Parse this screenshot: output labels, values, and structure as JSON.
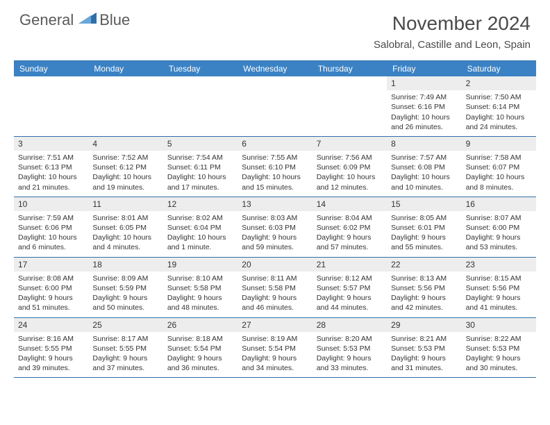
{
  "logo": {
    "word1": "General",
    "word2": "Blue"
  },
  "title": "November 2024",
  "location": "Salobral, Castille and Leon, Spain",
  "day_names": [
    "Sunday",
    "Monday",
    "Tuesday",
    "Wednesday",
    "Thursday",
    "Friday",
    "Saturday"
  ],
  "colors": {
    "header_bg": "#3b82c4",
    "border": "#2f6fa8",
    "daynum_bg": "#ededed",
    "logo_blue": "#3b7fc4",
    "text": "#333333"
  },
  "weeks": [
    [
      {
        "n": "",
        "sr": "",
        "ss": "",
        "dl": ""
      },
      {
        "n": "",
        "sr": "",
        "ss": "",
        "dl": ""
      },
      {
        "n": "",
        "sr": "",
        "ss": "",
        "dl": ""
      },
      {
        "n": "",
        "sr": "",
        "ss": "",
        "dl": ""
      },
      {
        "n": "",
        "sr": "",
        "ss": "",
        "dl": ""
      },
      {
        "n": "1",
        "sr": "Sunrise: 7:49 AM",
        "ss": "Sunset: 6:16 PM",
        "dl": "Daylight: 10 hours and 26 minutes."
      },
      {
        "n": "2",
        "sr": "Sunrise: 7:50 AM",
        "ss": "Sunset: 6:14 PM",
        "dl": "Daylight: 10 hours and 24 minutes."
      }
    ],
    [
      {
        "n": "3",
        "sr": "Sunrise: 7:51 AM",
        "ss": "Sunset: 6:13 PM",
        "dl": "Daylight: 10 hours and 21 minutes."
      },
      {
        "n": "4",
        "sr": "Sunrise: 7:52 AM",
        "ss": "Sunset: 6:12 PM",
        "dl": "Daylight: 10 hours and 19 minutes."
      },
      {
        "n": "5",
        "sr": "Sunrise: 7:54 AM",
        "ss": "Sunset: 6:11 PM",
        "dl": "Daylight: 10 hours and 17 minutes."
      },
      {
        "n": "6",
        "sr": "Sunrise: 7:55 AM",
        "ss": "Sunset: 6:10 PM",
        "dl": "Daylight: 10 hours and 15 minutes."
      },
      {
        "n": "7",
        "sr": "Sunrise: 7:56 AM",
        "ss": "Sunset: 6:09 PM",
        "dl": "Daylight: 10 hours and 12 minutes."
      },
      {
        "n": "8",
        "sr": "Sunrise: 7:57 AM",
        "ss": "Sunset: 6:08 PM",
        "dl": "Daylight: 10 hours and 10 minutes."
      },
      {
        "n": "9",
        "sr": "Sunrise: 7:58 AM",
        "ss": "Sunset: 6:07 PM",
        "dl": "Daylight: 10 hours and 8 minutes."
      }
    ],
    [
      {
        "n": "10",
        "sr": "Sunrise: 7:59 AM",
        "ss": "Sunset: 6:06 PM",
        "dl": "Daylight: 10 hours and 6 minutes."
      },
      {
        "n": "11",
        "sr": "Sunrise: 8:01 AM",
        "ss": "Sunset: 6:05 PM",
        "dl": "Daylight: 10 hours and 4 minutes."
      },
      {
        "n": "12",
        "sr": "Sunrise: 8:02 AM",
        "ss": "Sunset: 6:04 PM",
        "dl": "Daylight: 10 hours and 1 minute."
      },
      {
        "n": "13",
        "sr": "Sunrise: 8:03 AM",
        "ss": "Sunset: 6:03 PM",
        "dl": "Daylight: 9 hours and 59 minutes."
      },
      {
        "n": "14",
        "sr": "Sunrise: 8:04 AM",
        "ss": "Sunset: 6:02 PM",
        "dl": "Daylight: 9 hours and 57 minutes."
      },
      {
        "n": "15",
        "sr": "Sunrise: 8:05 AM",
        "ss": "Sunset: 6:01 PM",
        "dl": "Daylight: 9 hours and 55 minutes."
      },
      {
        "n": "16",
        "sr": "Sunrise: 8:07 AM",
        "ss": "Sunset: 6:00 PM",
        "dl": "Daylight: 9 hours and 53 minutes."
      }
    ],
    [
      {
        "n": "17",
        "sr": "Sunrise: 8:08 AM",
        "ss": "Sunset: 6:00 PM",
        "dl": "Daylight: 9 hours and 51 minutes."
      },
      {
        "n": "18",
        "sr": "Sunrise: 8:09 AM",
        "ss": "Sunset: 5:59 PM",
        "dl": "Daylight: 9 hours and 50 minutes."
      },
      {
        "n": "19",
        "sr": "Sunrise: 8:10 AM",
        "ss": "Sunset: 5:58 PM",
        "dl": "Daylight: 9 hours and 48 minutes."
      },
      {
        "n": "20",
        "sr": "Sunrise: 8:11 AM",
        "ss": "Sunset: 5:58 PM",
        "dl": "Daylight: 9 hours and 46 minutes."
      },
      {
        "n": "21",
        "sr": "Sunrise: 8:12 AM",
        "ss": "Sunset: 5:57 PM",
        "dl": "Daylight: 9 hours and 44 minutes."
      },
      {
        "n": "22",
        "sr": "Sunrise: 8:13 AM",
        "ss": "Sunset: 5:56 PM",
        "dl": "Daylight: 9 hours and 42 minutes."
      },
      {
        "n": "23",
        "sr": "Sunrise: 8:15 AM",
        "ss": "Sunset: 5:56 PM",
        "dl": "Daylight: 9 hours and 41 minutes."
      }
    ],
    [
      {
        "n": "24",
        "sr": "Sunrise: 8:16 AM",
        "ss": "Sunset: 5:55 PM",
        "dl": "Daylight: 9 hours and 39 minutes."
      },
      {
        "n": "25",
        "sr": "Sunrise: 8:17 AM",
        "ss": "Sunset: 5:55 PM",
        "dl": "Daylight: 9 hours and 37 minutes."
      },
      {
        "n": "26",
        "sr": "Sunrise: 8:18 AM",
        "ss": "Sunset: 5:54 PM",
        "dl": "Daylight: 9 hours and 36 minutes."
      },
      {
        "n": "27",
        "sr": "Sunrise: 8:19 AM",
        "ss": "Sunset: 5:54 PM",
        "dl": "Daylight: 9 hours and 34 minutes."
      },
      {
        "n": "28",
        "sr": "Sunrise: 8:20 AM",
        "ss": "Sunset: 5:53 PM",
        "dl": "Daylight: 9 hours and 33 minutes."
      },
      {
        "n": "29",
        "sr": "Sunrise: 8:21 AM",
        "ss": "Sunset: 5:53 PM",
        "dl": "Daylight: 9 hours and 31 minutes."
      },
      {
        "n": "30",
        "sr": "Sunrise: 8:22 AM",
        "ss": "Sunset: 5:53 PM",
        "dl": "Daylight: 9 hours and 30 minutes."
      }
    ]
  ]
}
